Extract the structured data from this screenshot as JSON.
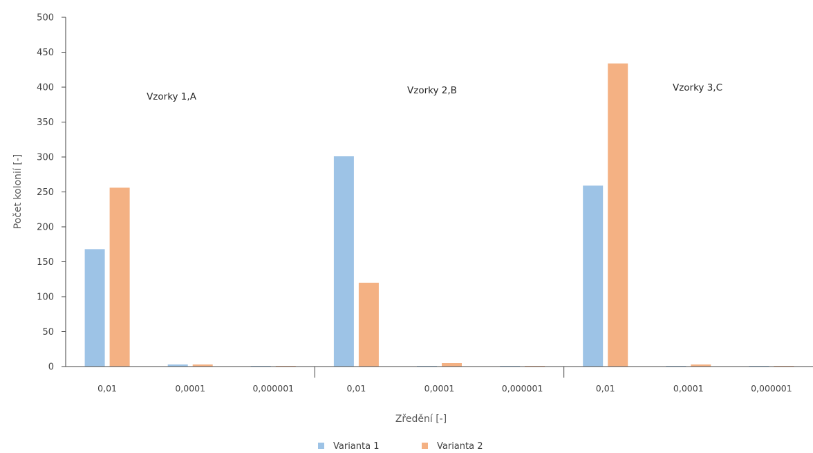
{
  "chart_data": {
    "type": "bar",
    "title": "",
    "xlabel": "Zředění [-]",
    "ylabel": "Počet kolonií [-]",
    "ylim": [
      0,
      500
    ],
    "yticks": [
      "0",
      "50",
      "100",
      "150",
      "200",
      "250",
      "300",
      "350",
      "400",
      "450",
      "500"
    ],
    "grid": false,
    "legend_position": "bottom",
    "groups": [
      {
        "label": "Vzorky 1,A",
        "categories": [
          "0,01",
          "0,0001",
          "0,000001"
        ]
      },
      {
        "label": "Vzorky 2,B",
        "categories": [
          "0,01",
          "0,0001",
          "0,000001"
        ]
      },
      {
        "label": "Vzorky 3,C",
        "categories": [
          "0,01",
          "0,0001",
          "0,000001"
        ]
      }
    ],
    "categories": [
      "0,01",
      "0,0001",
      "0,000001",
      "0,01",
      "0,0001",
      "0,000001",
      "0,01",
      "0,0001",
      "0,000001"
    ],
    "series": [
      {
        "name": "Varianta 1",
        "color": "#9DC3E6",
        "values": [
          168,
          3,
          1,
          301,
          1,
          1,
          259,
          1,
          1
        ]
      },
      {
        "name": "Varianta 2",
        "color": "#F4B183",
        "values": [
          256,
          3,
          1,
          120,
          5,
          1,
          434,
          3,
          1
        ]
      }
    ]
  }
}
